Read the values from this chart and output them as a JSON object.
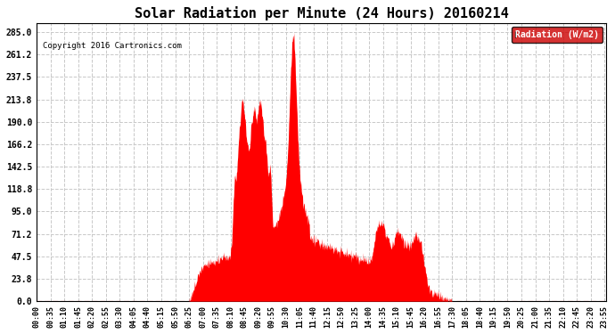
{
  "title": "Solar Radiation per Minute (24 Hours) 20160214",
  "copyright_text": "Copyright 2016 Cartronics.com",
  "legend_label": "Radiation (W/m2)",
  "y_ticks": [
    0.0,
    23.8,
    47.5,
    71.2,
    95.0,
    118.8,
    142.5,
    166.2,
    190.0,
    213.8,
    237.5,
    261.2,
    285.0
  ],
  "y_max": 295.0,
  "fill_color": "#FF0000",
  "background_color": "#FFFFFF",
  "grid_color": "#C8C8C8",
  "title_fontsize": 11,
  "copyright_fontsize": 7,
  "legend_bg": "#CC0000",
  "legend_text_color": "#FFFFFF",
  "total_minutes": 1440,
  "sunrise_minute": 385,
  "sunset_minute": 1050,
  "seed": 1234
}
